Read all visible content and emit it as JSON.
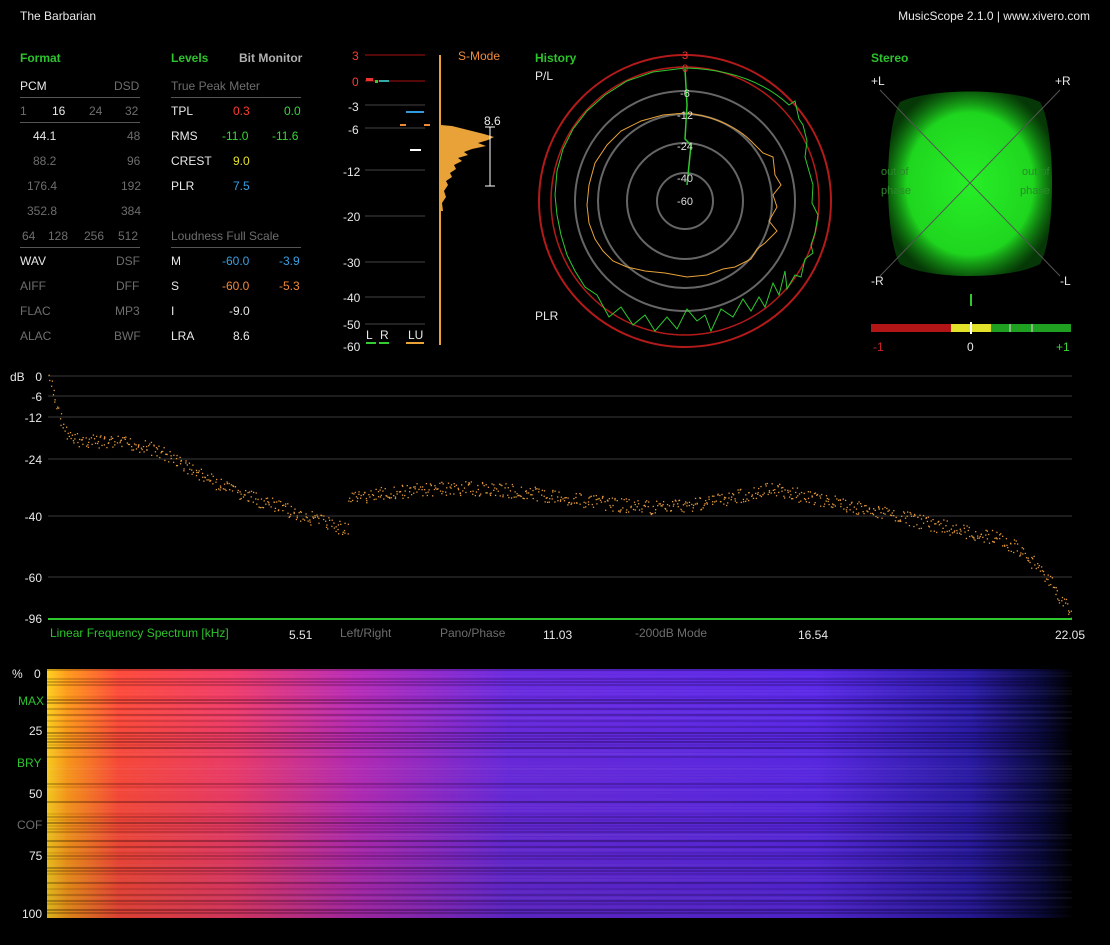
{
  "header": {
    "track_title": "The Barbarian",
    "app_info": "MusicScope 2.1.0 | www.xivero.com"
  },
  "format": {
    "title": "Format",
    "pcm": "PCM",
    "dsd": "DSD",
    "bits": [
      "1",
      "16",
      "24",
      "32"
    ],
    "rates": [
      "44.1",
      "48",
      "88.2",
      "96",
      "176.4",
      "192",
      "352.8",
      "384"
    ],
    "dsd_rates": [
      "64",
      "128",
      "256",
      "512"
    ],
    "codecs": [
      "WAV",
      "DSF",
      "AIFF",
      "DFF",
      "FLAC",
      "MP3",
      "ALAC",
      "BWF"
    ]
  },
  "levels": {
    "title": "Levels",
    "bit_monitor": "Bit Monitor",
    "true_peak_title": "True Peak Meter",
    "tpl": {
      "label": "TPL",
      "l": "0.3",
      "r": "0.0"
    },
    "rms": {
      "label": "RMS",
      "l": "-11.0",
      "r": "-11.6"
    },
    "crest": {
      "label": "CREST",
      "v": "9.0"
    },
    "plr": {
      "label": "PLR",
      "v": "7.5"
    },
    "loudness_title": "Loudness Full Scale",
    "m": {
      "label": "M",
      "a": "-60.0",
      "b": "-3.9"
    },
    "s": {
      "label": "S",
      "a": "-60.0",
      "b": "-5.3"
    },
    "i": {
      "label": "I",
      "v": "-9.0"
    },
    "lra": {
      "label": "LRA",
      "v": "8.6"
    }
  },
  "meter": {
    "scale": [
      "3",
      "0",
      "-3",
      "-6",
      "-12",
      "-20",
      "-30",
      "-40",
      "-50",
      "-60"
    ],
    "mode": "S-Mode",
    "lra_value": "8.6",
    "channels": [
      "L",
      "R",
      "LU"
    ]
  },
  "history": {
    "title": "History",
    "top_label": "P/L",
    "bottom_label": "PLR",
    "rings": [
      "3",
      "0",
      "-6",
      "-12",
      "-24",
      "-40",
      "-60"
    ]
  },
  "stereo": {
    "title": "Stereo",
    "corners": [
      "+L",
      "+R",
      "-R",
      "-L"
    ],
    "out_of_phase": [
      "out of",
      "phase",
      "out of",
      "phase"
    ],
    "correlation": [
      "-1",
      "0",
      "+1"
    ]
  },
  "spectrum": {
    "unit": "dB",
    "y_ticks": [
      "0",
      "-6",
      "-12",
      "-24",
      "-40",
      "-60",
      "-96"
    ],
    "label": "Linear Frequency Spectrum [kHz]",
    "x_ticks": [
      "5.51",
      "11.03",
      "16.54",
      "22.05"
    ],
    "options": [
      "Left/Right",
      "Pano/Phase",
      "-200dB Mode"
    ]
  },
  "spectrogram": {
    "unit": "%",
    "ticks": [
      "0",
      "25",
      "50",
      "75",
      "100"
    ],
    "markers": [
      "MAX",
      "BRY",
      "COF"
    ]
  },
  "colors": {
    "accent_green": "#2dc32d",
    "spectrum_dots": "#e59a3c",
    "ring_red": "#b31a1a",
    "stereo_green": "#1ee01e"
  }
}
